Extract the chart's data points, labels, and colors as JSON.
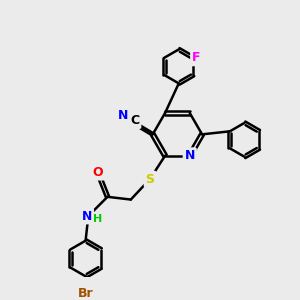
{
  "bg_color": "#ebebeb",
  "bond_color": "#000000",
  "bond_width": 1.8,
  "atom_colors": {
    "N": "#0000ff",
    "O": "#ff0000",
    "S": "#cccc00",
    "Br": "#a05000",
    "F": "#ff00ff",
    "C_label": "#000000",
    "H": "#00cc00"
  },
  "font_size": 9,
  "fig_size": [
    3.0,
    3.0
  ],
  "dpi": 100
}
